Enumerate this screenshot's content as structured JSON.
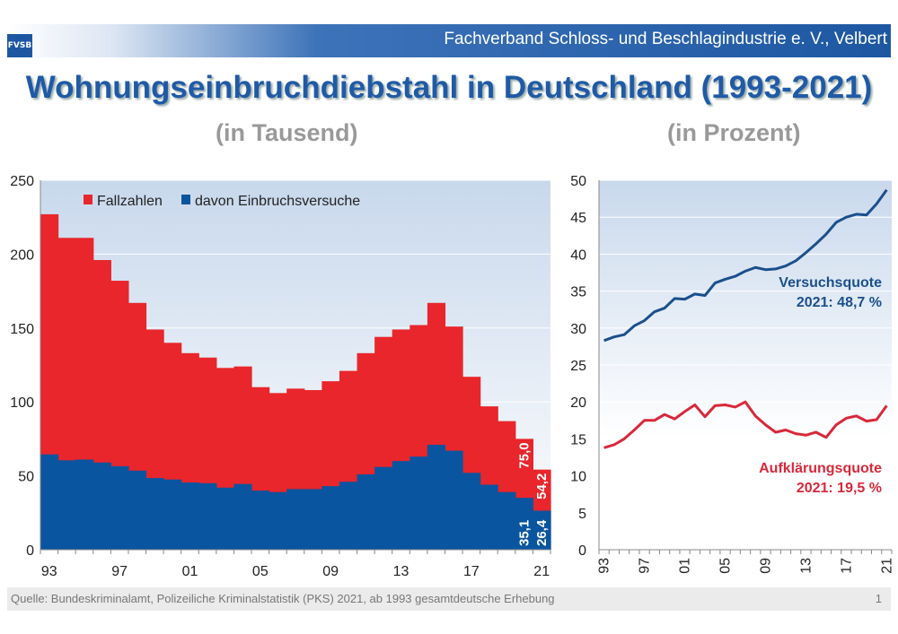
{
  "header": {
    "logo": "FVSB",
    "organization": "Fachverband Schloss- und Beschlagindustrie e. V., Velbert"
  },
  "title": "Wohnungseinbruchdiebstahl in Deutschland (1993-2021)",
  "subtitle_left": "(in Tausend)",
  "subtitle_right": "(in Prozent)",
  "footer": {
    "source": "Quelle:  Bundeskriminalamt, Polizeiliche Kriminalstatistik (PKS) 2021, ab 1993 gesamtdeutsche Erhebung",
    "page": "1"
  },
  "chart_data": [
    {
      "type": "bar",
      "stacked": "overlay",
      "x": [
        1993,
        1994,
        1995,
        1996,
        1997,
        1998,
        1999,
        2000,
        2001,
        2002,
        2003,
        2004,
        2005,
        2006,
        2007,
        2008,
        2009,
        2010,
        2011,
        2012,
        2013,
        2014,
        2015,
        2016,
        2017,
        2018,
        2019,
        2020,
        2021
      ],
      "xtick_labels": [
        "93",
        "97",
        "01",
        "05",
        "09",
        "13",
        "17",
        "21"
      ],
      "ylim": [
        0,
        250
      ],
      "yticks": [
        0,
        50,
        100,
        150,
        200,
        250
      ],
      "grid": true,
      "legend": "top-left",
      "series": [
        {
          "name": "Fallzahlen",
          "color": "#e8262b",
          "values": [
            227,
            211,
            211,
            196,
            182,
            167,
            149,
            140,
            133,
            130,
            123,
            124,
            110,
            106,
            109,
            108,
            114,
            121,
            133,
            144,
            149,
            152,
            167,
            151,
            117,
            97,
            87,
            75.0,
            54.2
          ]
        },
        {
          "name": "davon Einbruchsversuche",
          "color": "#0a55a0",
          "values": [
            64.5,
            60.5,
            61,
            59,
            56.5,
            53.5,
            48.5,
            47.5,
            45.5,
            45,
            42,
            44.5,
            40,
            39,
            41,
            41,
            43,
            46,
            51,
            56,
            60,
            63,
            71,
            67,
            52,
            44,
            39,
            35.1,
            26.4
          ]
        }
      ],
      "data_labels": {
        "fall_2020": "75,0",
        "fall_2021": "54,2",
        "versuch_2020": "35,1",
        "versuch_2021": "26,4"
      }
    },
    {
      "type": "line",
      "x": [
        1993,
        1994,
        1995,
        1996,
        1997,
        1998,
        1999,
        2000,
        2001,
        2002,
        2003,
        2004,
        2005,
        2006,
        2007,
        2008,
        2009,
        2010,
        2011,
        2012,
        2013,
        2014,
        2015,
        2016,
        2017,
        2018,
        2019,
        2020,
        2021
      ],
      "xtick_labels": [
        "93",
        "97",
        "01",
        "05",
        "09",
        "13",
        "17",
        "21"
      ],
      "ylim": [
        0,
        50
      ],
      "yticks": [
        0,
        5,
        10,
        15,
        20,
        25,
        30,
        35,
        40,
        45,
        50
      ],
      "grid": true,
      "series": [
        {
          "name": "Versuchsquote",
          "annotation": "2021:  48,7 %",
          "color": "#1a4f8c",
          "values": [
            28.3,
            28.8,
            29.1,
            30.3,
            31.0,
            32.2,
            32.7,
            34.0,
            33.9,
            34.6,
            34.4,
            36.1,
            36.6,
            37.0,
            37.7,
            38.2,
            37.9,
            38.0,
            38.4,
            39.1,
            40.2,
            41.4,
            42.7,
            44.3,
            45.0,
            45.4,
            45.3,
            46.8,
            48.7
          ]
        },
        {
          "name": "Aufklärungsquote",
          "annotation": "2021:  19,5 %",
          "color": "#d8283a",
          "values": [
            13.8,
            14.2,
            15.0,
            16.2,
            17.5,
            17.5,
            18.3,
            17.7,
            18.7,
            19.6,
            18.0,
            19.5,
            19.6,
            19.3,
            20.0,
            18.1,
            16.9,
            15.9,
            16.2,
            15.7,
            15.5,
            15.9,
            15.2,
            16.9,
            17.8,
            18.1,
            17.4,
            17.6,
            19.5
          ]
        }
      ]
    }
  ]
}
